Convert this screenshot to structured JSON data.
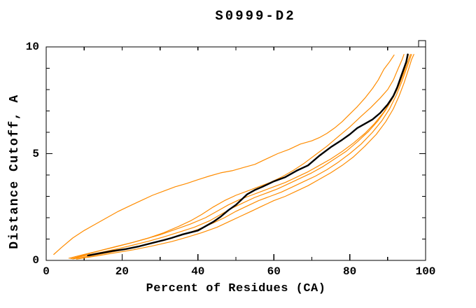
{
  "title": "S0999-D2",
  "colors": {
    "background": "#ffffff",
    "axis": "#000000",
    "orange_curve": "#ff8c00",
    "black_curve": "#000000"
  },
  "chart_data": {
    "type": "line",
    "title": "S0999-D2",
    "xlabel": "Percent of Residues (CA)",
    "ylabel": "Distance Cutoff, A",
    "xlim": [
      0,
      100
    ],
    "ylim": [
      0,
      10
    ],
    "xticks_major": [
      0,
      20,
      40,
      60,
      80,
      100
    ],
    "xticks_minor": [
      10,
      30,
      50,
      70,
      90
    ],
    "yticks_major": [
      0,
      5,
      10
    ],
    "yticks_minor": [
      1,
      2,
      3,
      4,
      6,
      7,
      8,
      9
    ],
    "grid": false,
    "legend_position": "none",
    "series": [
      {
        "name": "orange-curve-1-outlier",
        "color": "#ff8c00",
        "width": 1.2,
        "points": [
          [
            2,
            0.28
          ],
          [
            4,
            0.6
          ],
          [
            7,
            1.05
          ],
          [
            10,
            1.4
          ],
          [
            13,
            1.7
          ],
          [
            16,
            2.0
          ],
          [
            19,
            2.3
          ],
          [
            22,
            2.55
          ],
          [
            25,
            2.8
          ],
          [
            28,
            3.05
          ],
          [
            31,
            3.25
          ],
          [
            34,
            3.45
          ],
          [
            37,
            3.6
          ],
          [
            40,
            3.78
          ],
          [
            43,
            3.95
          ],
          [
            46,
            4.1
          ],
          [
            49,
            4.2
          ],
          [
            52,
            4.35
          ],
          [
            55,
            4.5
          ],
          [
            58,
            4.75
          ],
          [
            61,
            5.0
          ],
          [
            64,
            5.2
          ],
          [
            67,
            5.45
          ],
          [
            70,
            5.6
          ],
          [
            72,
            5.75
          ],
          [
            74,
            5.95
          ],
          [
            76,
            6.2
          ],
          [
            78,
            6.5
          ],
          [
            80,
            6.85
          ],
          [
            82,
            7.2
          ],
          [
            84,
            7.6
          ],
          [
            86,
            8.05
          ],
          [
            87.5,
            8.45
          ],
          [
            89,
            8.95
          ],
          [
            90.5,
            9.3
          ],
          [
            91.7,
            9.62
          ]
        ]
      },
      {
        "name": "orange-curve-2",
        "color": "#ff8c00",
        "width": 1.2,
        "points": [
          [
            7.5,
            0.12
          ],
          [
            11,
            0.3
          ],
          [
            15,
            0.5
          ],
          [
            19,
            0.68
          ],
          [
            23,
            0.85
          ],
          [
            27,
            1.05
          ],
          [
            31,
            1.3
          ],
          [
            35,
            1.6
          ],
          [
            38,
            1.85
          ],
          [
            41,
            2.15
          ],
          [
            44,
            2.5
          ],
          [
            47,
            2.8
          ],
          [
            50,
            3.05
          ],
          [
            53,
            3.25
          ],
          [
            56,
            3.45
          ],
          [
            59,
            3.65
          ],
          [
            62,
            3.9
          ],
          [
            65,
            4.2
          ],
          [
            68,
            4.55
          ],
          [
            71,
            4.95
          ],
          [
            74,
            5.35
          ],
          [
            77,
            5.8
          ],
          [
            80,
            6.25
          ],
          [
            83,
            6.75
          ],
          [
            85.5,
            7.15
          ],
          [
            88,
            7.6
          ],
          [
            90,
            8.0
          ],
          [
            91.5,
            8.45
          ],
          [
            92.8,
            9.0
          ],
          [
            93.8,
            9.4
          ],
          [
            94.3,
            9.65
          ]
        ]
      },
      {
        "name": "orange-curve-3",
        "color": "#ff8c00",
        "width": 1.2,
        "points": [
          [
            6,
            0.1
          ],
          [
            10,
            0.28
          ],
          [
            14,
            0.45
          ],
          [
            18,
            0.62
          ],
          [
            22,
            0.8
          ],
          [
            26,
            1.0
          ],
          [
            30,
            1.2
          ],
          [
            34,
            1.45
          ],
          [
            38,
            1.7
          ],
          [
            42,
            2.0
          ],
          [
            45,
            2.3
          ],
          [
            48,
            2.6
          ],
          [
            51,
            2.85
          ],
          [
            54,
            3.05
          ],
          [
            57,
            3.25
          ],
          [
            60,
            3.45
          ],
          [
            63,
            3.65
          ],
          [
            66,
            3.9
          ],
          [
            69,
            4.15
          ],
          [
            72,
            4.45
          ],
          [
            75,
            4.75
          ],
          [
            78,
            5.1
          ],
          [
            81,
            5.5
          ],
          [
            84,
            5.95
          ],
          [
            86.5,
            6.4
          ],
          [
            89,
            6.95
          ],
          [
            91,
            7.5
          ],
          [
            92.5,
            8.0
          ],
          [
            93.8,
            8.6
          ],
          [
            94.8,
            9.2
          ],
          [
            95.5,
            9.65
          ]
        ]
      },
      {
        "name": "orange-curve-4",
        "color": "#ff8c00",
        "width": 1.2,
        "points": [
          [
            6.5,
            0.08
          ],
          [
            11,
            0.25
          ],
          [
            15,
            0.4
          ],
          [
            19,
            0.55
          ],
          [
            23,
            0.72
          ],
          [
            27,
            0.9
          ],
          [
            31,
            1.1
          ],
          [
            35,
            1.32
          ],
          [
            39,
            1.55
          ],
          [
            43,
            1.85
          ],
          [
            46,
            2.15
          ],
          [
            49,
            2.45
          ],
          [
            52,
            2.7
          ],
          [
            55,
            2.95
          ],
          [
            58,
            3.15
          ],
          [
            61,
            3.35
          ],
          [
            64,
            3.6
          ],
          [
            67,
            3.85
          ],
          [
            70,
            4.1
          ],
          [
            73,
            4.4
          ],
          [
            76,
            4.75
          ],
          [
            79,
            5.1
          ],
          [
            82,
            5.55
          ],
          [
            85,
            6.05
          ],
          [
            87.5,
            6.55
          ],
          [
            89.5,
            7.05
          ],
          [
            91.5,
            7.65
          ],
          [
            93,
            8.2
          ],
          [
            94.3,
            8.8
          ],
          [
            95.3,
            9.3
          ],
          [
            96,
            9.65
          ]
        ]
      },
      {
        "name": "orange-curve-5",
        "color": "#ff8c00",
        "width": 1.2,
        "points": [
          [
            7,
            0.07
          ],
          [
            12,
            0.22
          ],
          [
            17,
            0.38
          ],
          [
            22,
            0.55
          ],
          [
            27,
            0.75
          ],
          [
            32,
            0.98
          ],
          [
            36,
            1.2
          ],
          [
            40,
            1.45
          ],
          [
            44,
            1.75
          ],
          [
            47,
            2.0
          ],
          [
            50,
            2.3
          ],
          [
            53,
            2.55
          ],
          [
            56,
            2.8
          ],
          [
            59,
            3.0
          ],
          [
            62,
            3.2
          ],
          [
            65,
            3.45
          ],
          [
            68,
            3.7
          ],
          [
            71,
            3.95
          ],
          [
            74,
            4.25
          ],
          [
            77,
            4.6
          ],
          [
            80,
            5.0
          ],
          [
            83,
            5.45
          ],
          [
            86,
            6.0
          ],
          [
            88.5,
            6.55
          ],
          [
            90.5,
            7.1
          ],
          [
            92.3,
            7.75
          ],
          [
            93.8,
            8.4
          ],
          [
            95,
            9.0
          ],
          [
            95.8,
            9.4
          ],
          [
            96.3,
            9.65
          ]
        ]
      },
      {
        "name": "orange-curve-6",
        "color": "#ff8c00",
        "width": 1.2,
        "points": [
          [
            8,
            0.06
          ],
          [
            13,
            0.2
          ],
          [
            18,
            0.35
          ],
          [
            23,
            0.5
          ],
          [
            28,
            0.68
          ],
          [
            33,
            0.88
          ],
          [
            37,
            1.08
          ],
          [
            41,
            1.3
          ],
          [
            45,
            1.55
          ],
          [
            48,
            1.8
          ],
          [
            51,
            2.05
          ],
          [
            54,
            2.3
          ],
          [
            57,
            2.55
          ],
          [
            60,
            2.8
          ],
          [
            63,
            3.0
          ],
          [
            66,
            3.25
          ],
          [
            69,
            3.5
          ],
          [
            72,
            3.8
          ],
          [
            75,
            4.1
          ],
          [
            78,
            4.45
          ],
          [
            81,
            4.85
          ],
          [
            84,
            5.35
          ],
          [
            87,
            5.9
          ],
          [
            89.5,
            6.5
          ],
          [
            91.5,
            7.1
          ],
          [
            93,
            7.7
          ],
          [
            94.3,
            8.3
          ],
          [
            95.4,
            8.9
          ],
          [
            96.3,
            9.4
          ],
          [
            96.9,
            9.65
          ]
        ]
      },
      {
        "name": "black-main-curve",
        "color": "#000000",
        "width": 2.4,
        "points": [
          [
            11,
            0.23
          ],
          [
            14,
            0.33
          ],
          [
            17.5,
            0.44
          ],
          [
            21,
            0.53
          ],
          [
            24.5,
            0.66
          ],
          [
            28,
            0.82
          ],
          [
            31,
            0.95
          ],
          [
            33,
            1.05
          ],
          [
            36,
            1.22
          ],
          [
            40,
            1.4
          ],
          [
            42,
            1.6
          ],
          [
            44,
            1.8
          ],
          [
            46,
            2.05
          ],
          [
            48,
            2.35
          ],
          [
            50,
            2.6
          ],
          [
            51.5,
            2.85
          ],
          [
            53,
            3.1
          ],
          [
            55,
            3.3
          ],
          [
            57,
            3.45
          ],
          [
            60,
            3.7
          ],
          [
            63,
            3.9
          ],
          [
            66,
            4.2
          ],
          [
            69,
            4.45
          ],
          [
            72,
            4.9
          ],
          [
            75,
            5.3
          ],
          [
            78,
            5.65
          ],
          [
            80,
            5.9
          ],
          [
            82,
            6.2
          ],
          [
            84,
            6.4
          ],
          [
            86,
            6.6
          ],
          [
            88,
            6.9
          ],
          [
            90,
            7.3
          ],
          [
            91.5,
            7.7
          ],
          [
            92.5,
            8.1
          ],
          [
            93.5,
            8.6
          ],
          [
            94.3,
            9.0
          ],
          [
            94.9,
            9.3
          ],
          [
            95.3,
            9.65
          ]
        ]
      }
    ]
  }
}
